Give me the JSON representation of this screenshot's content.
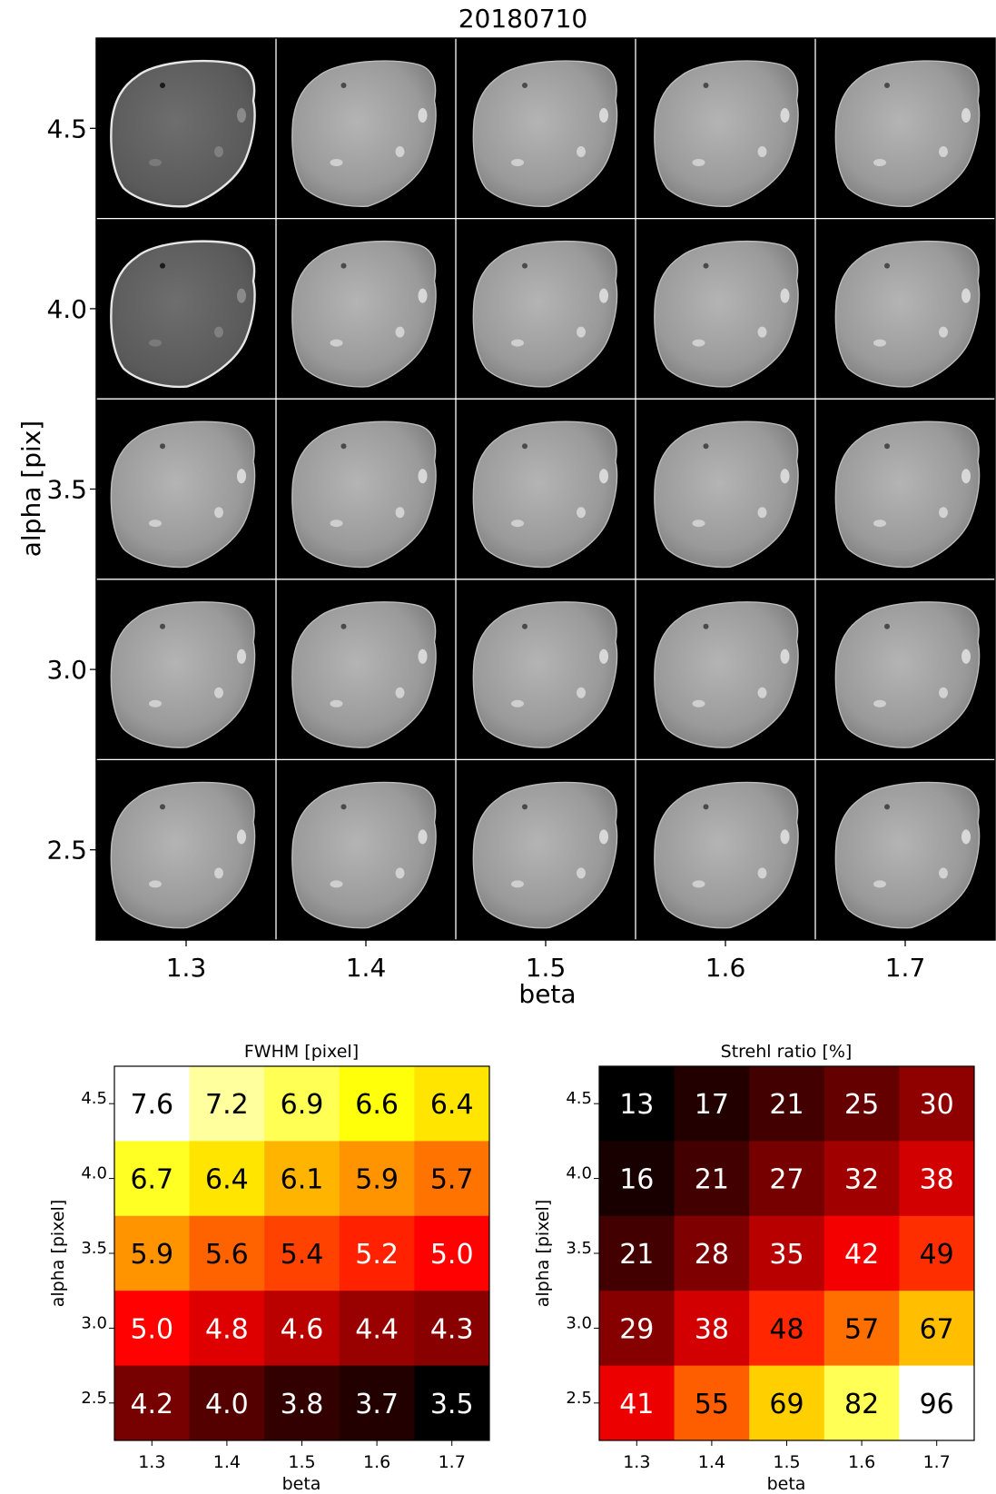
{
  "chart_data": [
    {
      "type": "image-grid",
      "title": "20180710",
      "xlabel": "beta",
      "ylabel": "alpha [pix]",
      "x_ticks": [
        "1.3",
        "1.4",
        "1.5",
        "1.6",
        "1.7"
      ],
      "y_ticks": [
        "4.5",
        "4.0",
        "3.5",
        "3.0",
        "2.5"
      ],
      "beta_values": [
        1.3,
        1.4,
        1.5,
        1.6,
        1.7
      ],
      "alpha_values": [
        4.5,
        4.0,
        3.5,
        3.0,
        2.5
      ],
      "background_color": "#000000",
      "separator_color": "#ffffff"
    },
    {
      "type": "heatmap",
      "title": "FWHM [pixel]",
      "xlabel": "beta",
      "ylabel": "alpha [pixel]",
      "x_ticks": [
        "1.3",
        "1.4",
        "1.5",
        "1.6",
        "1.7"
      ],
      "y_ticks": [
        "4.5",
        "4.0",
        "3.5",
        "3.0",
        "2.5"
      ],
      "colormap": "hot",
      "value_range": [
        3.5,
        7.6
      ],
      "values": [
        [
          "7.6",
          "7.2",
          "6.9",
          "6.6",
          "6.4"
        ],
        [
          "6.7",
          "6.4",
          "6.1",
          "5.9",
          "5.7"
        ],
        [
          "5.9",
          "5.6",
          "5.4",
          "5.2",
          "5.0"
        ],
        [
          "5.0",
          "4.8",
          "4.6",
          "4.4",
          "4.3"
        ],
        [
          "4.2",
          "4.0",
          "3.8",
          "3.7",
          "3.5"
        ]
      ]
    },
    {
      "type": "heatmap",
      "title": "Strehl ratio [%]",
      "xlabel": "beta",
      "ylabel": "alpha [pixel]",
      "x_ticks": [
        "1.3",
        "1.4",
        "1.5",
        "1.6",
        "1.7"
      ],
      "y_ticks": [
        "4.5",
        "4.0",
        "3.5",
        "3.0",
        "2.5"
      ],
      "colormap": "hot",
      "value_range": [
        13,
        96
      ],
      "values": [
        [
          "13",
          "17",
          "21",
          "25",
          "30"
        ],
        [
          "16",
          "21",
          "27",
          "32",
          "38"
        ],
        [
          "21",
          "28",
          "35",
          "42",
          "49"
        ],
        [
          "29",
          "38",
          "48",
          "57",
          "67"
        ],
        [
          "41",
          "55",
          "69",
          "82",
          "96"
        ]
      ]
    }
  ]
}
